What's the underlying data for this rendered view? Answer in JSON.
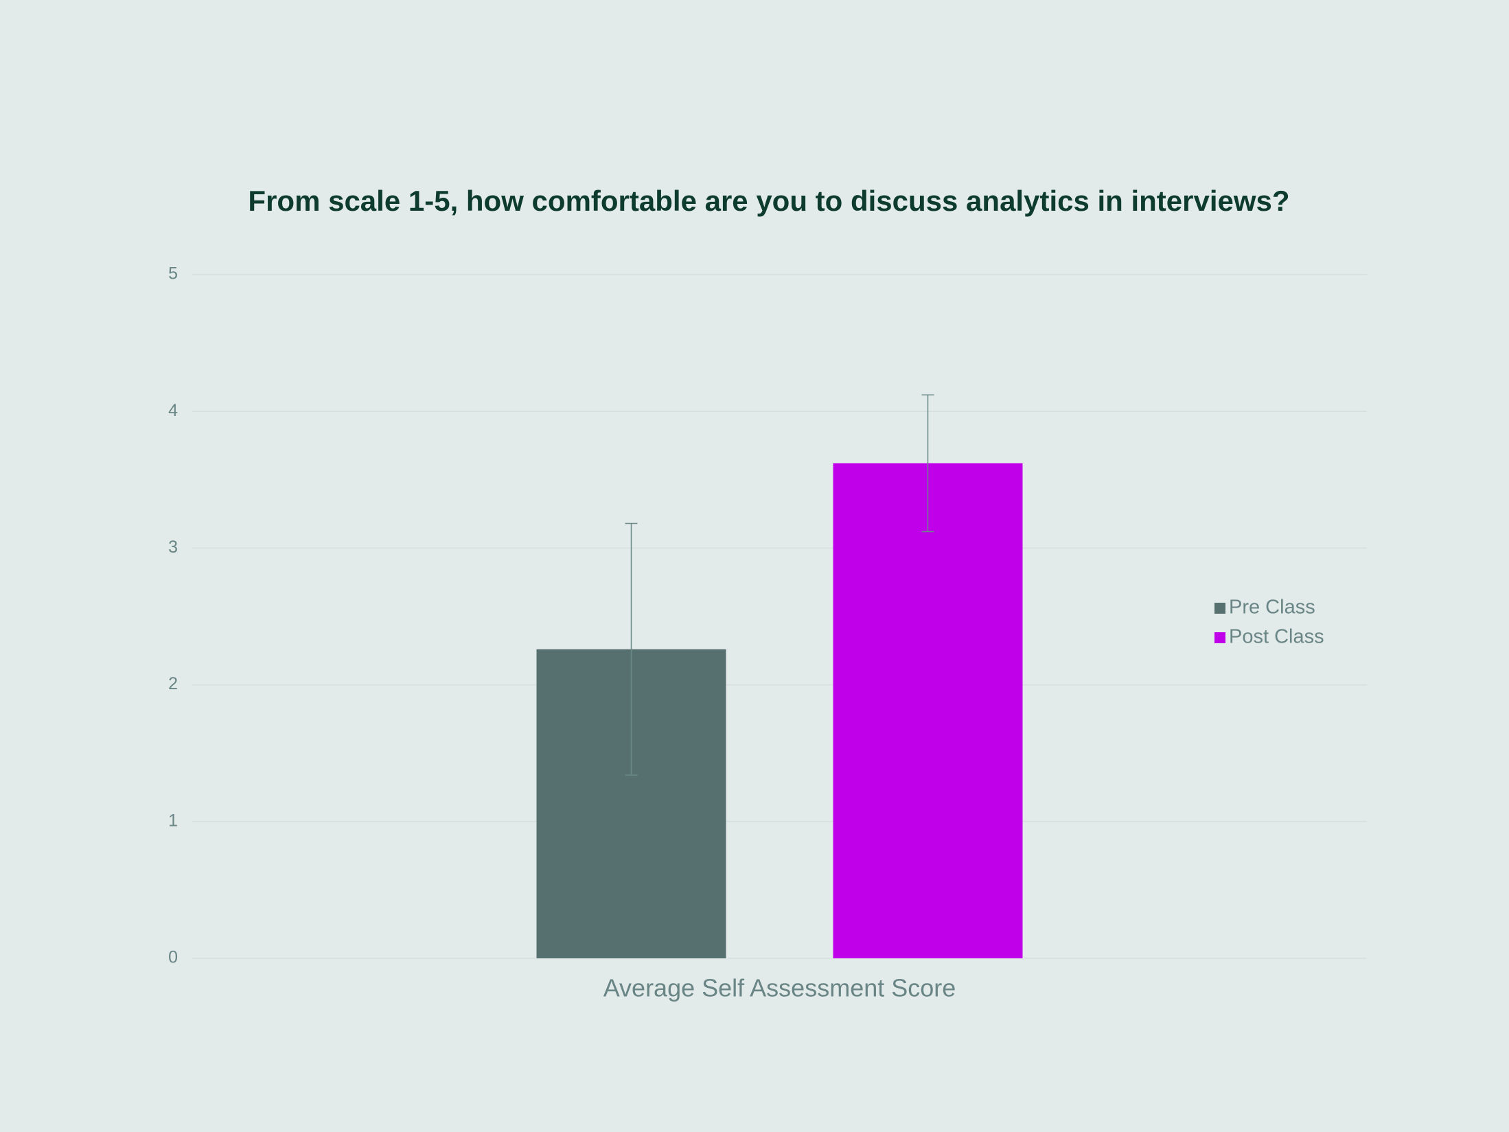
{
  "chart_data": {
    "type": "bar",
    "title": "From scale 1-5, how comfortable are you to discuss analytics in interviews?",
    "categories": [
      "Average Self Assessment Score"
    ],
    "series": [
      {
        "name": "Pre Class",
        "color": "#566f6f",
        "values": [
          2.26
        ],
        "errors": [
          0.92
        ]
      },
      {
        "name": "Post Class",
        "color": "#c000e8",
        "values": [
          3.62
        ],
        "errors": [
          0.5
        ]
      }
    ],
    "ylim": [
      0,
      5
    ],
    "yticks": [
      0,
      1,
      2,
      3,
      4,
      5
    ],
    "grid": true,
    "legend": "right"
  }
}
